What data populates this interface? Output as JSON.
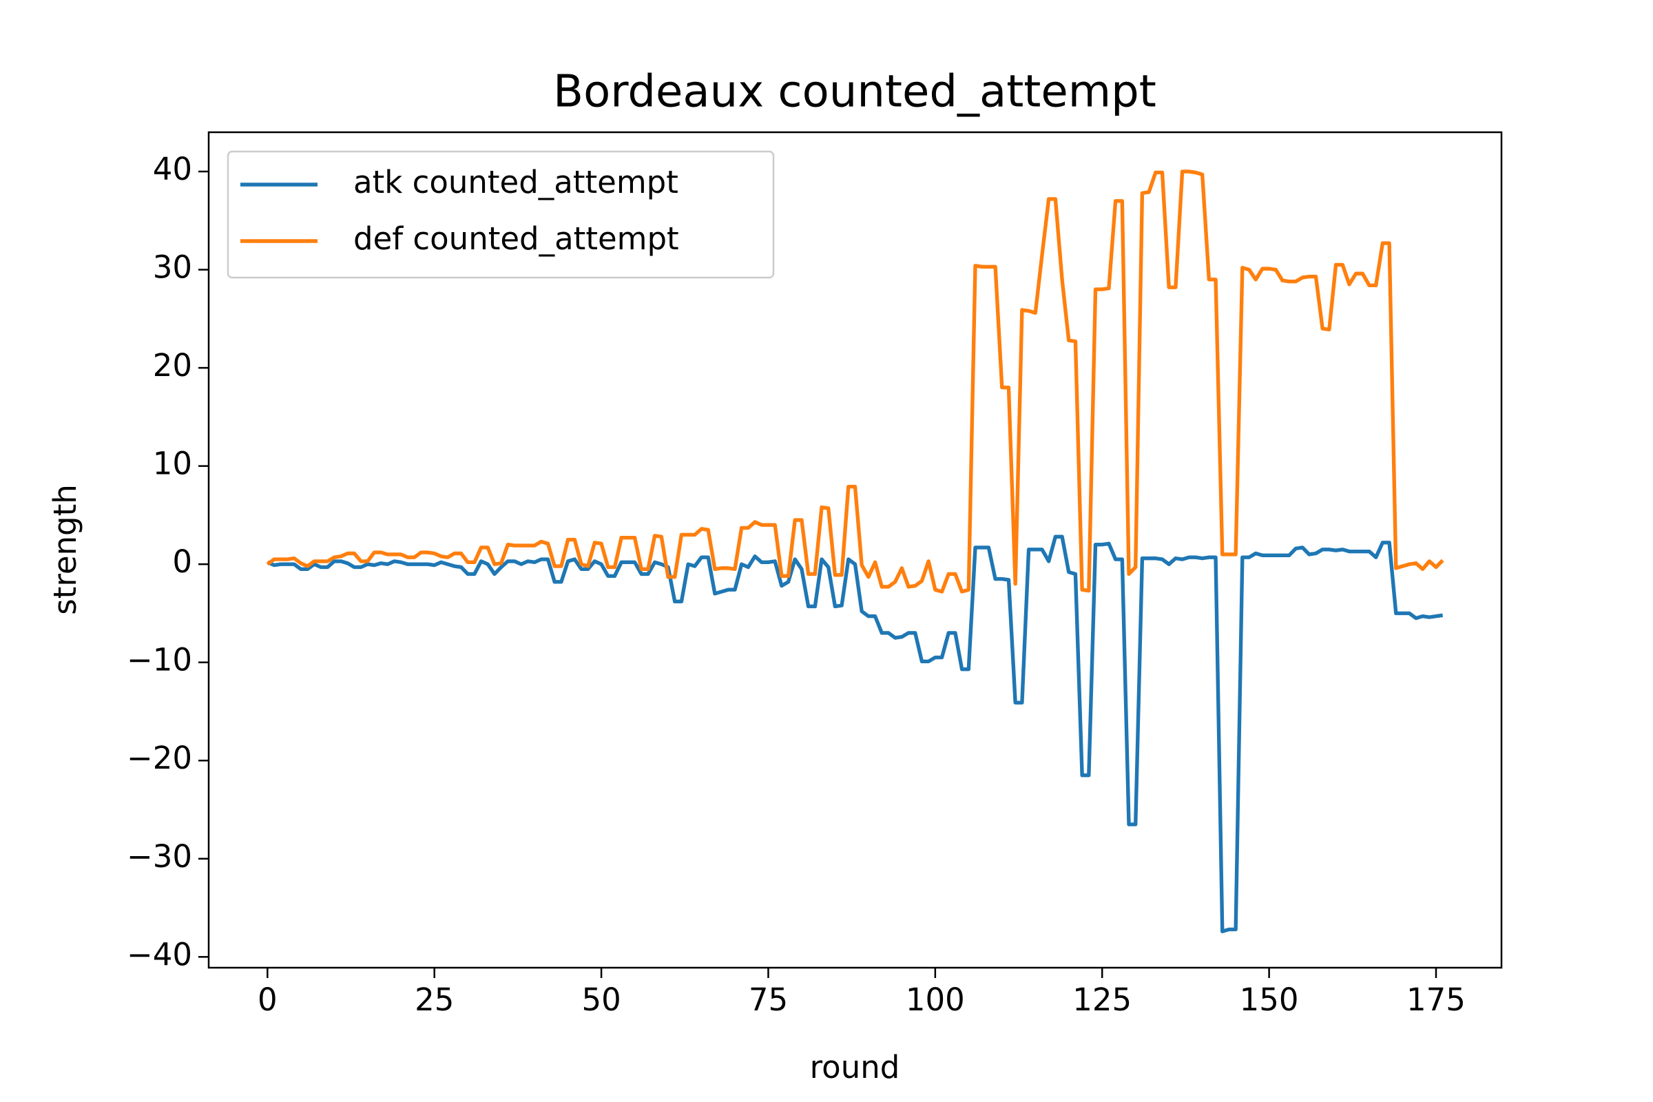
{
  "chart_data": {
    "type": "line",
    "title": "Bordeaux counted_attempt",
    "x_label": "round",
    "y_label": "strength",
    "x": [
      0,
      1,
      2,
      3,
      4,
      5,
      6,
      7,
      8,
      9,
      10,
      11,
      12,
      13,
      14,
      15,
      16,
      17,
      18,
      19,
      20,
      21,
      22,
      23,
      24,
      25,
      26,
      27,
      28,
      29,
      30,
      31,
      32,
      33,
      34,
      35,
      36,
      37,
      38,
      39,
      40,
      41,
      42,
      43,
      44,
      45,
      46,
      47,
      48,
      49,
      50,
      51,
      52,
      53,
      54,
      55,
      56,
      57,
      58,
      59,
      60,
      61,
      62,
      63,
      64,
      65,
      66,
      67,
      68,
      69,
      70,
      71,
      72,
      73,
      74,
      75,
      76,
      77,
      78,
      79,
      80,
      81,
      82,
      83,
      84,
      85,
      86,
      87,
      88,
      89,
      90,
      91,
      92,
      93,
      94,
      95,
      96,
      97,
      98,
      99,
      100,
      101,
      102,
      103,
      104,
      105,
      106,
      107,
      108,
      109,
      110,
      111,
      112,
      113,
      114,
      115,
      116,
      117,
      118,
      119,
      120,
      121,
      122,
      123,
      124,
      125,
      126,
      127,
      128,
      129,
      130,
      131,
      132,
      133,
      134,
      135,
      136,
      137,
      138,
      139,
      140,
      141,
      142,
      143,
      144,
      145,
      146,
      147,
      148,
      149,
      150,
      151,
      152,
      153,
      154,
      155,
      156,
      157,
      158,
      159,
      160,
      161,
      162,
      163,
      164,
      165,
      166,
      167,
      168,
      169,
      170,
      171,
      172,
      173,
      174,
      175,
      176
    ],
    "series": [
      {
        "name": "atk counted_attempt",
        "color": "#1f77b4",
        "values": [
          0.2,
          -0.1,
          0,
          0,
          0,
          -0.5,
          -0.5,
          0,
          -0.3,
          -0.3,
          0.3,
          0.3,
          0.1,
          -0.3,
          -0.3,
          0,
          -0.1,
          0.1,
          0,
          0.3,
          0.2,
          0,
          0,
          0,
          0,
          -0.1,
          0.2,
          0,
          -0.2,
          -0.3,
          -1,
          -1,
          0.3,
          0,
          -1,
          -0.3,
          0.3,
          0.3,
          0,
          0.3,
          0.2,
          0.5,
          0.5,
          -1.8,
          -1.8,
          0.3,
          0.5,
          -0.5,
          -0.5,
          0.3,
          0,
          -1.2,
          -1.2,
          0.2,
          0.2,
          0.2,
          -1,
          -1,
          0.2,
          0,
          -0.3,
          -3.8,
          -3.8,
          0,
          -0.2,
          0.7,
          0.7,
          -3,
          -2.8,
          -2.6,
          -2.6,
          0,
          -0.3,
          0.8,
          0.2,
          0.2,
          0.3,
          -2.2,
          -1.8,
          0.5,
          -0.5,
          -4.3,
          -4.3,
          0.5,
          -0.3,
          -4.3,
          -4.2,
          0.5,
          0,
          -4.8,
          -5.3,
          -5.3,
          -7,
          -7,
          -7.5,
          -7.4,
          -7,
          -7,
          -9.9,
          -9.9,
          -9.5,
          -9.5,
          -7,
          -7,
          -10.7,
          -10.7,
          1.7,
          1.7,
          1.7,
          -1.5,
          -1.5,
          -1.6,
          -14.1,
          -14.1,
          1.5,
          1.5,
          1.5,
          0.3,
          2.8,
          2.8,
          -0.8,
          -1,
          -21.5,
          -21.5,
          2,
          2,
          2.1,
          0.5,
          0.5,
          -26.5,
          -26.5,
          0.6,
          0.6,
          0.6,
          0.5,
          0,
          0.6,
          0.5,
          0.7,
          0.7,
          0.6,
          0.7,
          0.7,
          -37.4,
          -37.2,
          -37.2,
          0.7,
          0.7,
          1.1,
          0.9,
          0.9,
          0.9,
          0.9,
          0.9,
          1.6,
          1.7,
          1,
          1.1,
          1.5,
          1.5,
          1.4,
          1.5,
          1.3,
          1.3,
          1.3,
          1.3,
          0.7,
          2.2,
          2.2,
          -5,
          -5,
          -5,
          -5.5,
          -5.3,
          -5.4,
          -5.3,
          -5.2
        ]
      },
      {
        "name": "def counted_attempt",
        "color": "#ff7f0e",
        "values": [
          0,
          0.5,
          0.5,
          0.5,
          0.6,
          0.1,
          -0.2,
          0.3,
          0.3,
          0.3,
          0.7,
          0.8,
          1.1,
          1.1,
          0.3,
          0.3,
          1.2,
          1.2,
          1,
          1,
          1,
          0.7,
          0.7,
          1.2,
          1.2,
          1.1,
          0.8,
          0.7,
          1.1,
          1.1,
          0.2,
          0.2,
          1.7,
          1.7,
          0,
          0.1,
          2,
          1.9,
          1.9,
          1.9,
          1.9,
          2.3,
          2.1,
          -0.2,
          -0.2,
          2.5,
          2.5,
          0,
          -0.2,
          2.2,
          2.1,
          -0.3,
          -0.3,
          2.7,
          2.7,
          2.7,
          -0.5,
          -0.5,
          2.9,
          2.8,
          -1.3,
          -1.3,
          3,
          3,
          3,
          3.6,
          3.5,
          -0.5,
          -0.4,
          -0.4,
          -0.5,
          3.7,
          3.7,
          4.3,
          4,
          4,
          4,
          -1.2,
          -1.2,
          4.5,
          4.5,
          -1,
          -1,
          5.8,
          5.7,
          -1.1,
          -1.1,
          7.9,
          7.9,
          -0.1,
          -1.3,
          0.2,
          -2.3,
          -2.3,
          -1.8,
          -0.4,
          -2.3,
          -2.2,
          -1.7,
          0.3,
          -2.6,
          -2.8,
          -1,
          -1,
          -2.8,
          -2.6,
          30.4,
          30.3,
          30.3,
          30.3,
          18,
          18,
          -2,
          25.9,
          25.8,
          25.6,
          31.5,
          37.2,
          37.2,
          29,
          22.8,
          22.7,
          -2.6,
          -2.7,
          28,
          28,
          28.1,
          37,
          37,
          -1,
          -0.3,
          37.8,
          37.9,
          39.9,
          39.9,
          28.2,
          28.2,
          40,
          40,
          39.9,
          39.7,
          29,
          29,
          1,
          1,
          1,
          30.2,
          30,
          29,
          30.1,
          30.1,
          30,
          28.9,
          28.8,
          28.8,
          29.2,
          29.3,
          29.3,
          24,
          23.9,
          30.5,
          30.5,
          28.5,
          29.6,
          29.6,
          28.4,
          28.4,
          32.7,
          32.7,
          -0.4,
          -0.2,
          0,
          0.1,
          -0.5,
          0.3,
          -0.3,
          0.4
        ]
      }
    ],
    "xlim": [
      -8.8,
      184.8
    ],
    "ylim": [
      -41.1,
      44.0
    ],
    "xticks": [
      0,
      25,
      50,
      75,
      100,
      125,
      150,
      175
    ],
    "yticks": [
      {
        "value": -40,
        "label": "−40"
      },
      {
        "value": -30,
        "label": "−30"
      },
      {
        "value": -20,
        "label": "−20"
      },
      {
        "value": -10,
        "label": "−10"
      },
      0,
      10,
      20,
      30,
      40
    ],
    "legend": "upper left",
    "grid": false
  }
}
